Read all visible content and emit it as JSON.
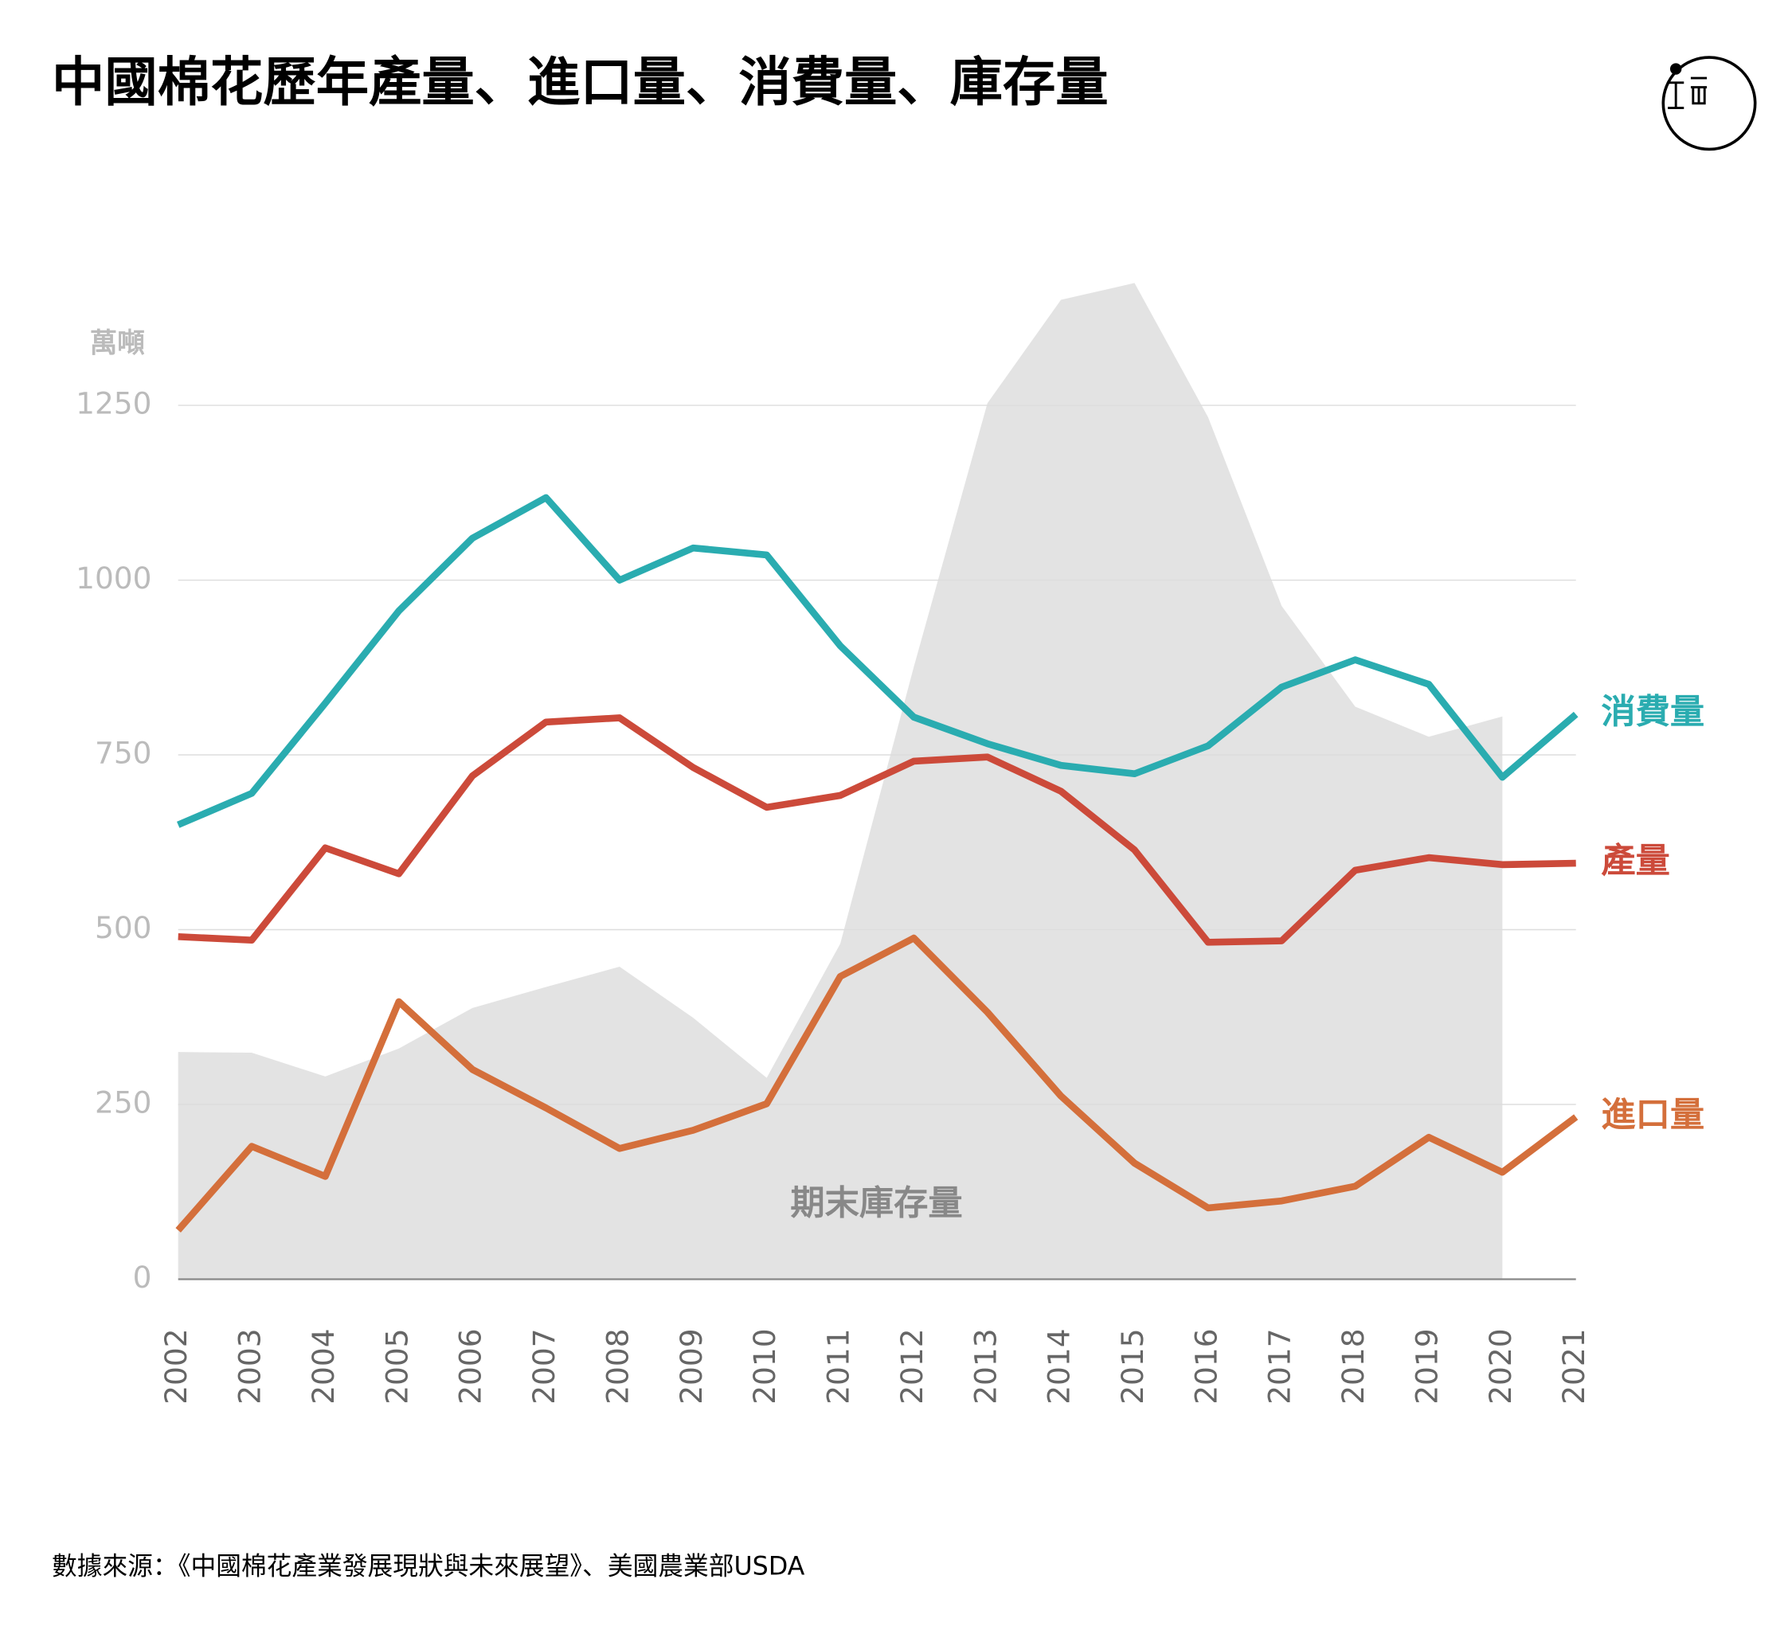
{
  "chart_data": {
    "type": "line",
    "title": "中國棉花歷年產量、進口量、消費量、庫存量",
    "y_label": "萬噸",
    "source": "數據來源：《中國棉花產業發展現狀與未來展望》、美國農業部USDA",
    "categories": [
      "2002",
      "2003",
      "2004",
      "2005",
      "2006",
      "2007",
      "2008",
      "2009",
      "2010",
      "2011",
      "2012",
      "2013",
      "2014",
      "2015",
      "2016",
      "2017",
      "2018",
      "2019",
      "2020",
      "2021"
    ],
    "ylim": [
      0,
      1250
    ],
    "yticks": [
      0,
      250,
      500,
      750,
      1000,
      1250
    ],
    "grid": true,
    "area": {
      "name": "期末庫存量",
      "color": "#e3e3e3",
      "values": [
        325,
        324,
        290,
        330,
        388,
        418,
        447,
        374,
        288,
        480,
        876,
        1253,
        1401,
        1425,
        1233,
        963,
        819,
        776,
        805,
        null
      ]
    },
    "series": [
      {
        "name": "消費量",
        "color": "#2aacb0",
        "values": [
          650,
          695,
          824,
          956,
          1060,
          1118,
          1000,
          1046,
          1036,
          906,
          804,
          766,
          735,
          723,
          763,
          847,
          886,
          851,
          718,
          808
        ]
      },
      {
        "name": "產量",
        "color": "#cc4a3a",
        "values": [
          490,
          485,
          617,
          580,
          720,
          797,
          803,
          732,
          675,
          692,
          741,
          747,
          698,
          614,
          482,
          484,
          585,
          603,
          593,
          595
        ]
      },
      {
        "name": "進口量",
        "color": "#d46f3b",
        "values": [
          70,
          190,
          147,
          397,
          300,
          245,
          187,
          213,
          251,
          433,
          488,
          382,
          262,
          166,
          102,
          112,
          133,
          203,
          153,
          232
        ]
      }
    ]
  }
}
